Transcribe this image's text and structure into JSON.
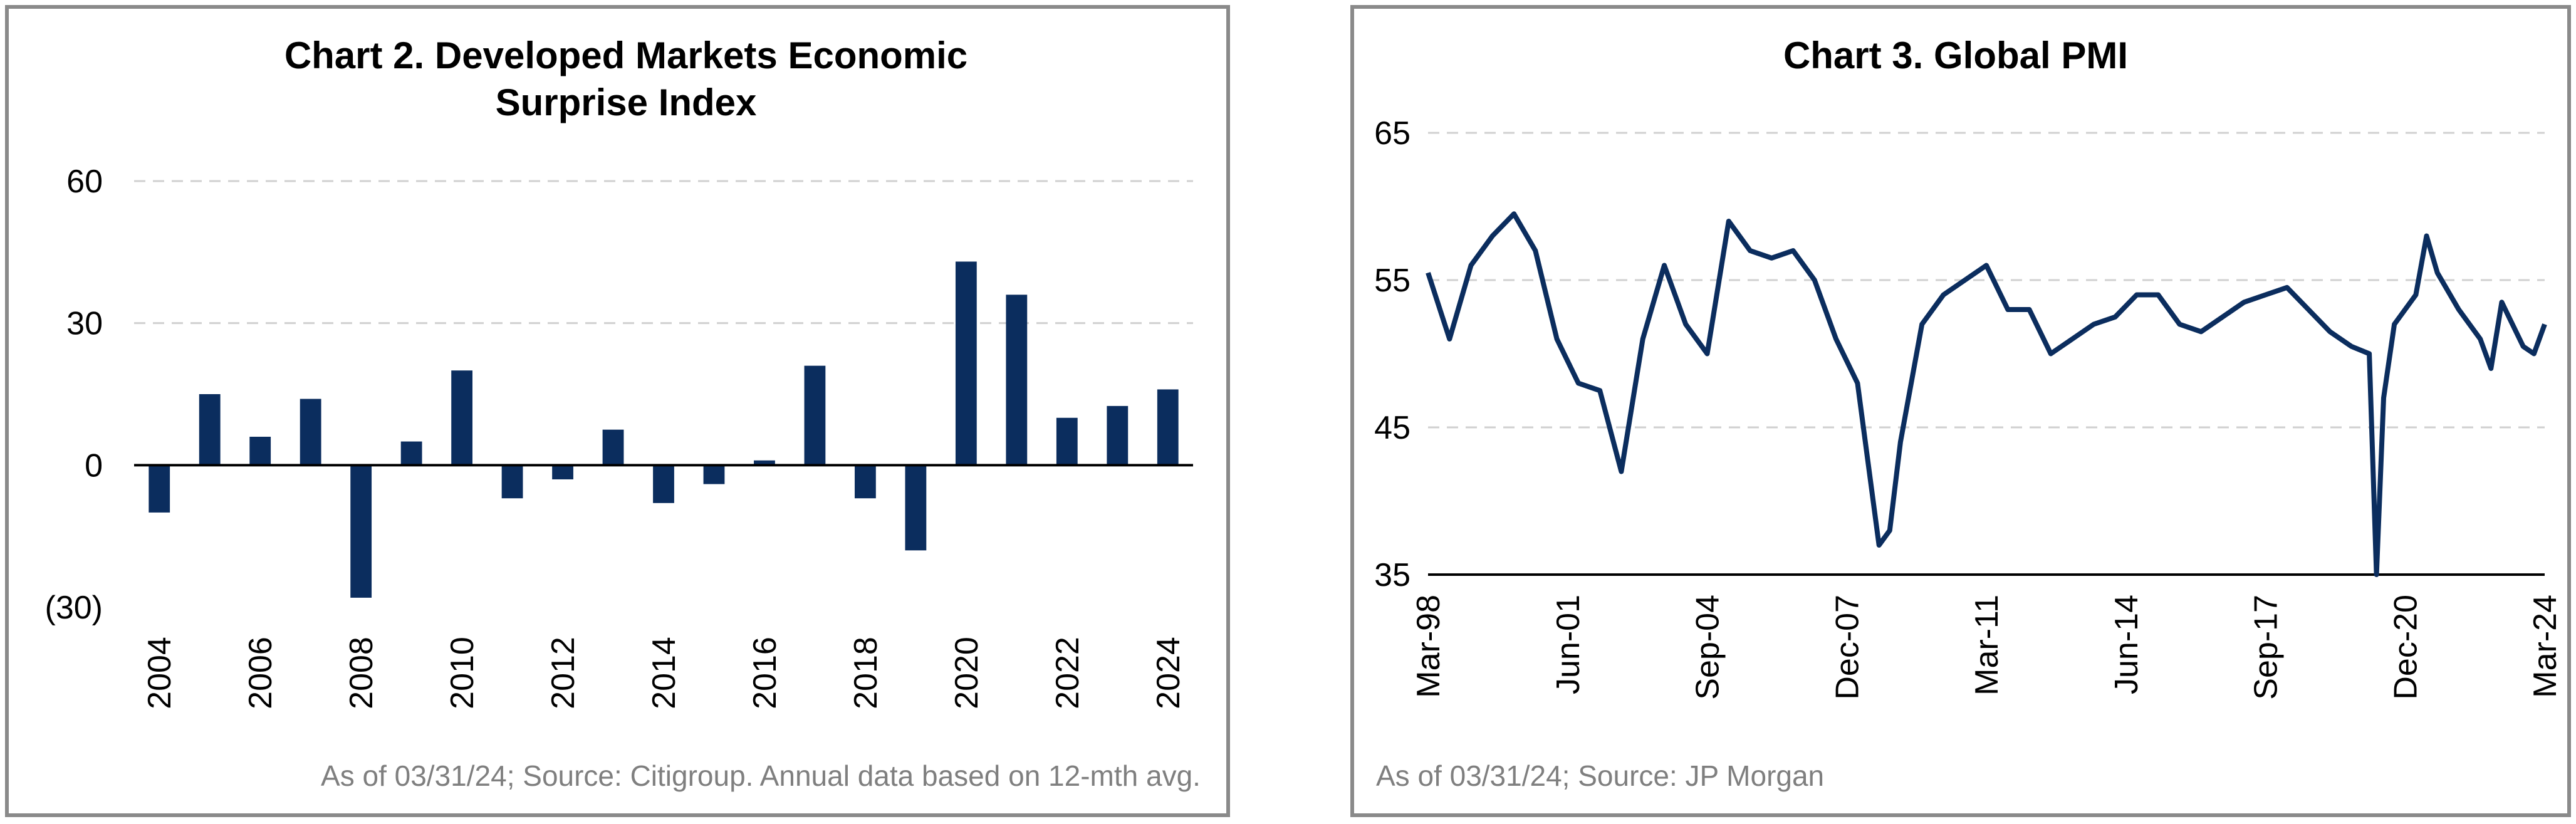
{
  "charts": [
    {
      "title_line1": "Chart 2. Developed Markets Economic",
      "title_line2": "Surprise Index",
      "source": "As of 03/31/24; Source: Citigroup. Annual data based on 12-mth avg.",
      "bar_color": "#0b2d5e",
      "chart_data": {
        "type": "bar",
        "title": "Chart 2. Developed Markets Economic Surprise Index",
        "xlabel": "",
        "ylabel": "",
        "categories": [
          "2004",
          "2005",
          "2006",
          "2007",
          "2008",
          "2009",
          "2010",
          "2011",
          "2012",
          "2013",
          "2014",
          "2015",
          "2016",
          "2017",
          "2018",
          "2019",
          "2020",
          "2021",
          "2022",
          "2023",
          "2024"
        ],
        "values": [
          -10,
          15,
          6,
          14,
          -28,
          5,
          20,
          -7,
          -3,
          7.5,
          -8,
          -4,
          1,
          21,
          -7,
          -18,
          43,
          36,
          10,
          12.5,
          16
        ],
        "ylim": [
          -30,
          60
        ],
        "yticks": [
          60,
          30,
          0,
          -30
        ],
        "ytick_labels": [
          "60",
          "30",
          "0",
          "(30)"
        ],
        "xtick_labels": [
          "2004",
          "2006",
          "2008",
          "2010",
          "2012",
          "2014",
          "2016",
          "2018",
          "2020",
          "2022",
          "2024"
        ],
        "grid": true
      }
    },
    {
      "title_line1": "Chart 3. Global PMI",
      "source": "As of 03/31/24; Source: JP Morgan",
      "line_color": "#0b2d5e",
      "chart_data": {
        "type": "line",
        "title": "Chart 3. Global PMI",
        "xlabel": "",
        "ylabel": "",
        "x": [
          "Mar-98",
          "Sep-98",
          "Mar-99",
          "Sep-99",
          "Mar-00",
          "Sep-00",
          "Mar-01",
          "Sep-01",
          "Mar-02",
          "Sep-02",
          "Mar-03",
          "Sep-03",
          "Mar-04",
          "Sep-04",
          "Mar-05",
          "Sep-05",
          "Mar-06",
          "Sep-06",
          "Mar-07",
          "Sep-07",
          "Mar-08",
          "Sep-08",
          "Dec-08",
          "Mar-09",
          "Sep-09",
          "Mar-10",
          "Sep-10",
          "Mar-11",
          "Sep-11",
          "Mar-12",
          "Sep-12",
          "Mar-13",
          "Sep-13",
          "Mar-14",
          "Sep-14",
          "Mar-15",
          "Sep-15",
          "Mar-16",
          "Sep-16",
          "Mar-17",
          "Sep-17",
          "Mar-18",
          "Sep-18",
          "Mar-19",
          "Sep-19",
          "Feb-20",
          "Apr-20",
          "Jun-20",
          "Sep-20",
          "Mar-21",
          "Jun-21",
          "Sep-21",
          "Mar-22",
          "Sep-22",
          "Dec-22",
          "Mar-23",
          "Sep-23",
          "Dec-23",
          "Mar-24"
        ],
        "y": [
          55.5,
          51,
          56,
          58,
          59.5,
          57,
          51,
          48,
          47.5,
          42,
          51,
          56,
          52,
          50,
          59,
          57,
          56.5,
          57,
          55,
          51,
          48,
          37,
          38,
          44,
          52,
          54,
          55,
          56,
          53,
          53,
          50,
          51,
          52,
          52.5,
          54,
          54,
          52,
          51.5,
          52.5,
          53.5,
          54,
          54.5,
          53,
          51.5,
          50.5,
          50,
          35,
          47,
          52,
          54,
          58,
          55.5,
          53,
          51,
          49,
          53.5,
          50.5,
          50,
          52
        ],
        "xtick_labels": [
          "Mar-98",
          "Jun-01",
          "Sep-04",
          "Dec-07",
          "Mar-11",
          "Jun-14",
          "Sep-17",
          "Dec-20",
          "Mar-24"
        ],
        "ylim": [
          35,
          65
        ],
        "yticks": [
          65,
          55,
          45,
          35
        ],
        "grid": true
      }
    }
  ]
}
